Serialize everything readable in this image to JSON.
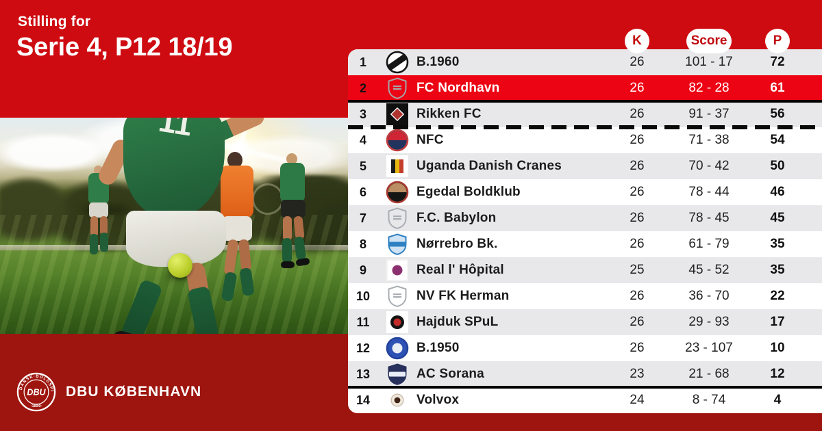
{
  "header": {
    "pretitle": "Stilling for",
    "title": "Serie 4, P12 18/19"
  },
  "footer": {
    "org": "DBU KØBENHAVN",
    "crest": {
      "ring": "DANSK·BOLDSPIL·UNION",
      "center": "DBU",
      "year": "·1889·"
    }
  },
  "colors": {
    "band_red": "#ce0b11",
    "highlight_red": "#ec0414",
    "dark_red": "#9d150e",
    "row_alt_gray": "#e8e8ea",
    "row_white": "#ffffff",
    "pill_text_red": "#c00b10",
    "separator_black": "#000000"
  },
  "table": {
    "columns": [
      {
        "label": "K"
      },
      {
        "label": "Score"
      },
      {
        "label": "P"
      }
    ],
    "rows": [
      {
        "pos": "1",
        "team": "B.1960",
        "k": "26",
        "score": "101 - 17",
        "p": "72",
        "highlight": false,
        "sep": null,
        "logo": {
          "icon": "b1960-crest-icon",
          "s": "circle",
          "a": "diag",
          "c": [
            "#151515",
            "#ffffff",
            "#151515"
          ]
        }
      },
      {
        "pos": "2",
        "team": "FC Nordhavn",
        "k": "26",
        "score": "82 - 28",
        "p": "61",
        "highlight": true,
        "sep": "solid",
        "logo": {
          "icon": "placeholder-shield-icon",
          "s": "shield",
          "a": "lines",
          "c": [
            "#a6a6a6",
            "none",
            "#a6a6a6"
          ]
        }
      },
      {
        "pos": "3",
        "team": "Rikken FC",
        "k": "26",
        "score": "91 - 37",
        "p": "56",
        "highlight": false,
        "sep": "dashed",
        "logo": {
          "icon": "rikken-crest-icon",
          "s": "square",
          "a": "diamond",
          "c": [
            "#0f0f0f",
            "#0f0f0f",
            "#b03430"
          ]
        }
      },
      {
        "pos": "4",
        "team": "NFC",
        "k": "26",
        "score": "71 - 38",
        "p": "54",
        "highlight": false,
        "sep": null,
        "logo": {
          "icon": "nfc-crest-icon",
          "s": "circle",
          "a": "top",
          "c": [
            "#c24040",
            "#22335e",
            "#cf2535"
          ]
        }
      },
      {
        "pos": "5",
        "team": "Uganda Danish Cranes",
        "k": "26",
        "score": "70 - 42",
        "p": "50",
        "highlight": false,
        "sep": null,
        "logo": {
          "icon": "uganda-danish-cranes-crest-icon",
          "s": "square",
          "a": "stripes",
          "c": [
            "#ffffff",
            "#ffffff",
            "#1c1c1c",
            "#e6b70d",
            "#c43d2b"
          ]
        }
      },
      {
        "pos": "6",
        "team": "Egedal Boldklub",
        "k": "26",
        "score": "78 - 44",
        "p": "46",
        "highlight": false,
        "sep": null,
        "logo": {
          "icon": "egedal-crest-icon",
          "s": "circle",
          "a": "top",
          "c": [
            "#a83a30",
            "#161616",
            "#bb8e63"
          ]
        }
      },
      {
        "pos": "7",
        "team": "F.C. Babylon",
        "k": "26",
        "score": "78 - 45",
        "p": "45",
        "highlight": false,
        "sep": null,
        "logo": {
          "icon": "placeholder-shield-icon",
          "s": "shield",
          "a": "lines",
          "c": [
            "#a9adb2",
            "none",
            "#a9adb2"
          ]
        }
      },
      {
        "pos": "8",
        "team": "Nørrebro Bk.",
        "k": "26",
        "score": "61 - 79",
        "p": "35",
        "highlight": false,
        "sep": null,
        "logo": {
          "icon": "norrebro-crest-icon",
          "s": "shield",
          "a": "band",
          "c": [
            "#2f80c2",
            "#cfe3f4",
            "#2f80c2"
          ]
        }
      },
      {
        "pos": "9",
        "team": "Real l' Hôpital",
        "k": "25",
        "score": "45 - 52",
        "p": "35",
        "highlight": false,
        "sep": null,
        "logo": {
          "icon": "real-lhopital-crest-icon",
          "s": "square",
          "a": "dot",
          "c": [
            "#f2f2f2",
            "#ffffff",
            "#8c3170"
          ]
        }
      },
      {
        "pos": "10",
        "team": "NV FK Herman",
        "k": "26",
        "score": "36 - 70",
        "p": "22",
        "highlight": false,
        "sep": null,
        "logo": {
          "icon": "placeholder-shield-icon",
          "s": "shield",
          "a": "lines",
          "c": [
            "#a9adb2",
            "none",
            "#a9adb2"
          ]
        }
      },
      {
        "pos": "11",
        "team": "Hajduk SPuL",
        "k": "26",
        "score": "29 - 93",
        "p": "17",
        "highlight": false,
        "sep": null,
        "logo": {
          "icon": "hajduk-spul-crest-icon",
          "s": "square",
          "a": "circledot",
          "c": [
            "#ffffff",
            "#ffffff",
            "#141414",
            "#c22b28"
          ]
        }
      },
      {
        "pos": "12",
        "team": "B.1950",
        "k": "26",
        "score": "23 - 107",
        "p": "10",
        "highlight": false,
        "sep": null,
        "logo": {
          "icon": "b1950-crest-icon",
          "s": "circle",
          "a": "dot",
          "c": [
            "#22419c",
            "#2d51b4",
            "#e9edf6"
          ]
        }
      },
      {
        "pos": "13",
        "team": "AC Sorana",
        "k": "23",
        "score": "21 - 68",
        "p": "12",
        "highlight": false,
        "sep": "solid",
        "logo": {
          "icon": "ac-sorana-crest-icon",
          "s": "shield",
          "a": "band",
          "c": [
            "#27315c",
            "#27315c",
            "#e9edf6"
          ]
        }
      },
      {
        "pos": "14",
        "team": "Volvox",
        "k": "24",
        "score": "8 - 74",
        "p": "4",
        "highlight": false,
        "sep": null,
        "logo": {
          "icon": "volvox-crest-icon",
          "s": "circle",
          "a": "dot",
          "c": [
            "#cdbfae",
            "#f1e9dc",
            "#402418"
          ],
          "sz": 20
        }
      }
    ]
  }
}
